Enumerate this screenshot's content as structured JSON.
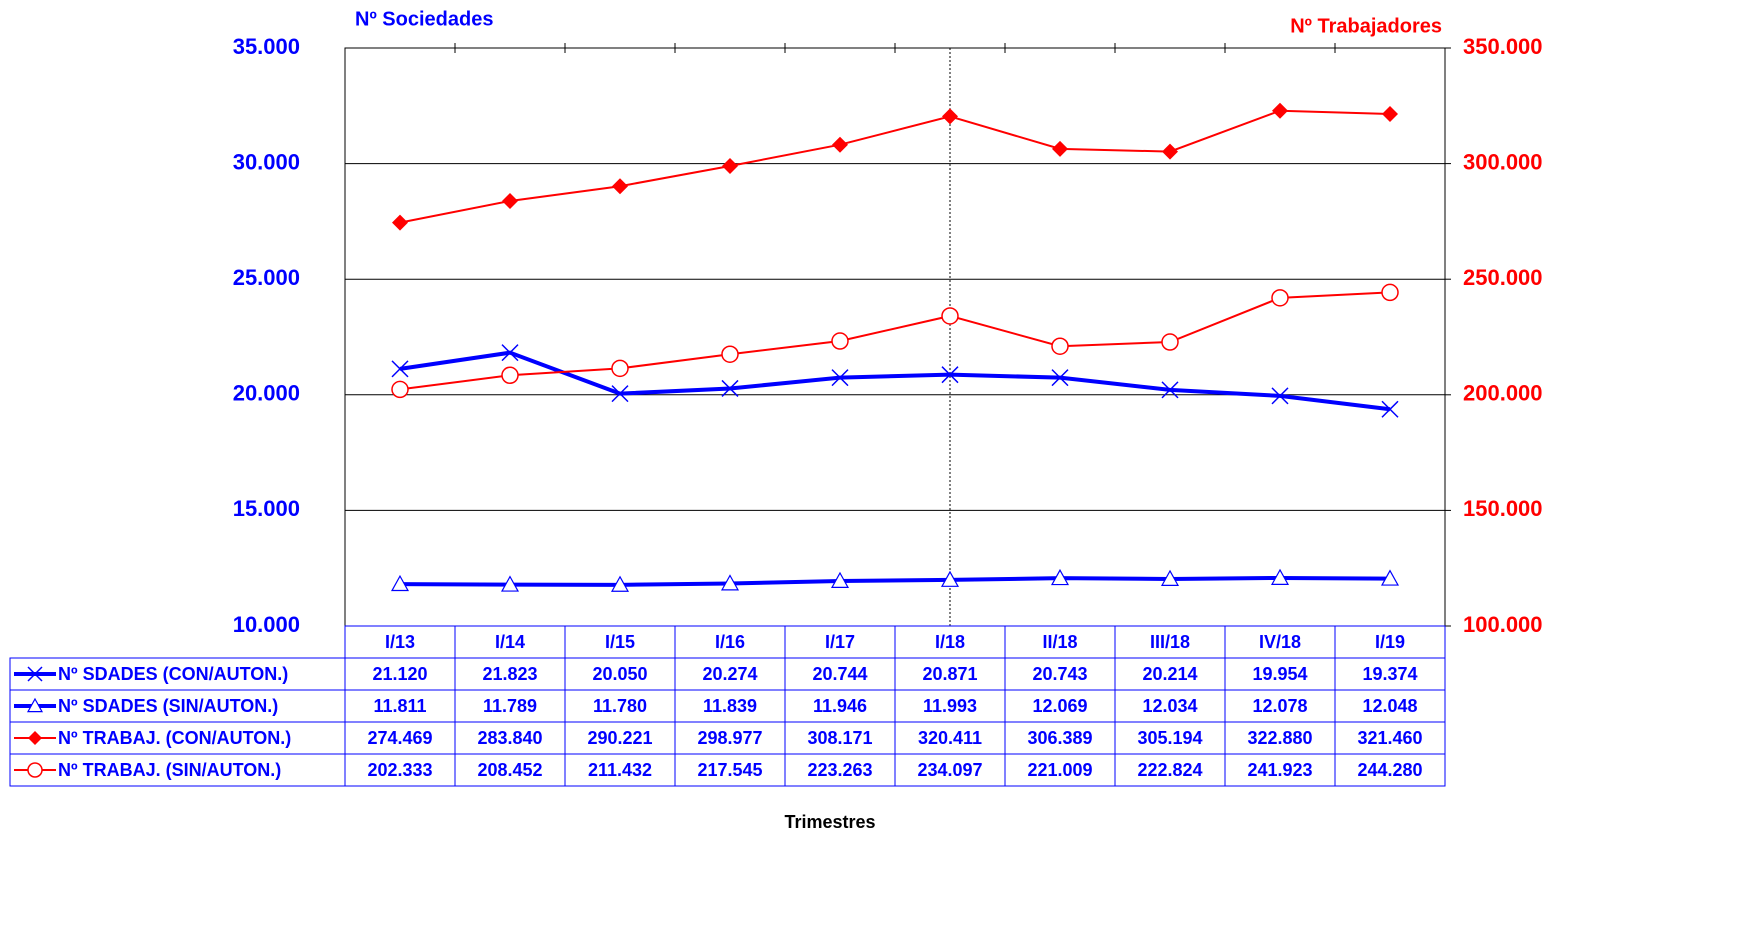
{
  "chart_data": {
    "type": "line",
    "y_title": "Nº Sociedades",
    "y2_title": "Nº Trabajadores",
    "x_title": "Trimestres",
    "categories": [
      "I/13",
      "I/14",
      "I/15",
      "I/16",
      "I/17",
      "I/18",
      "II/18",
      "III/18",
      "IV/18",
      "I/19"
    ],
    "ylim": [
      10000,
      35000
    ],
    "yticks": [
      {
        "value": 10000,
        "label": "10.000"
      },
      {
        "value": 15000,
        "label": "15.000"
      },
      {
        "value": 20000,
        "label": "20.000"
      },
      {
        "value": 25000,
        "label": "25.000"
      },
      {
        "value": 30000,
        "label": "30.000"
      },
      {
        "value": 35000,
        "label": "35.000"
      }
    ],
    "y2lim": [
      100000,
      350000
    ],
    "y2ticks": [
      {
        "value": 100000,
        "label": "100.000"
      },
      {
        "value": 150000,
        "label": "150.000"
      },
      {
        "value": 200000,
        "label": "200.000"
      },
      {
        "value": 250000,
        "label": "250.000"
      },
      {
        "value": 300000,
        "label": "300.000"
      },
      {
        "value": 350000,
        "label": "350.000"
      }
    ],
    "y_color": "#0000ff",
    "y2_color": "#ff0000",
    "grid": true,
    "series": [
      {
        "name": "Nº SDADES (CON/AUTON.)",
        "color": "#0000ff",
        "marker": "x",
        "axis": "y",
        "values": [
          21120,
          21823,
          20050,
          20274,
          20744,
          20871,
          20743,
          20214,
          19954,
          19374
        ],
        "value_labels": [
          "21.120",
          "21.823",
          "20.050",
          "20.274",
          "20.744",
          "20.871",
          "20.743",
          "20.214",
          "19.954",
          "19.374"
        ]
      },
      {
        "name": "Nº SDADES (SIN/AUTON.)",
        "color": "#0000ff",
        "marker": "triangle",
        "axis": "y",
        "values": [
          11811,
          11789,
          11780,
          11839,
          11946,
          11993,
          12069,
          12034,
          12078,
          12048
        ],
        "value_labels": [
          "11.811",
          "11.789",
          "11.780",
          "11.839",
          "11.946",
          "11.993",
          "12.069",
          "12.034",
          "12.078",
          "12.048"
        ]
      },
      {
        "name": "Nº TRABAJ. (CON/AUTON.)",
        "color": "#ff0000",
        "marker": "diamond",
        "axis": "y2",
        "values": [
          274469,
          283840,
          290221,
          298977,
          308171,
          320411,
          306389,
          305194,
          322880,
          321460
        ],
        "value_labels": [
          "274.469",
          "283.840",
          "290.221",
          "298.977",
          "308.171",
          "320.411",
          "306.389",
          "305.194",
          "322.880",
          "321.460"
        ]
      },
      {
        "name": "Nº TRABAJ. (SIN/AUTON.)",
        "color": "#ff0000",
        "marker": "circle",
        "axis": "y2",
        "values": [
          202333,
          208452,
          211432,
          217545,
          223263,
          234097,
          221009,
          222824,
          241923,
          244280
        ],
        "value_labels": [
          "202.333",
          "208.452",
          "211.432",
          "217.545",
          "223.263",
          "234.097",
          "221.009",
          "222.824",
          "241.923",
          "244.280"
        ]
      }
    ],
    "marker_line_category": 5
  }
}
